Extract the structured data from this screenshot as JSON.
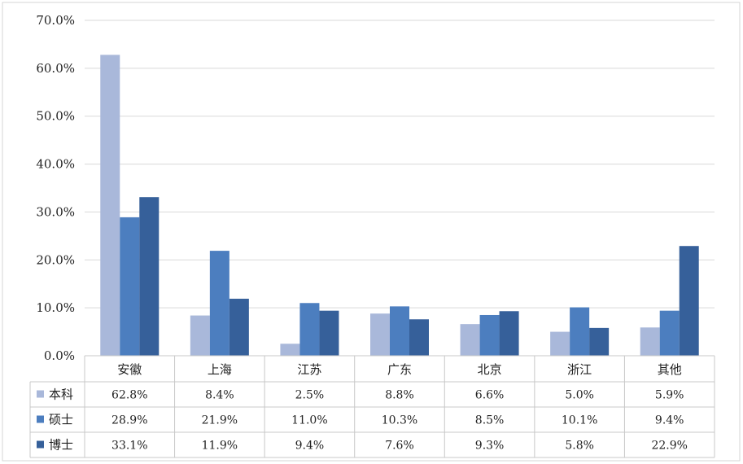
{
  "chart_data": {
    "type": "bar",
    "title": "",
    "xlabel": "",
    "ylabel": "",
    "ylim": [
      0,
      70
    ],
    "yticks": [
      "0.0%",
      "10.0%",
      "20.0%",
      "30.0%",
      "40.0%",
      "50.0%",
      "60.0%",
      "70.0%"
    ],
    "grid": true,
    "legend": "data-table",
    "categories": [
      "安徽",
      "上海",
      "江苏",
      "广东",
      "北京",
      "浙江",
      "其他"
    ],
    "series": [
      {
        "name": "本科",
        "color": "#a9b8da",
        "values": [
          62.8,
          8.4,
          2.5,
          8.8,
          6.6,
          5.0,
          5.9
        ],
        "labels": [
          "62.8%",
          "8.4%",
          "2.5%",
          "8.8%",
          "6.6%",
          "5.0%",
          "5.9%"
        ]
      },
      {
        "name": "硕士",
        "color": "#4c7ebf",
        "values": [
          28.9,
          21.9,
          11.0,
          10.3,
          8.5,
          10.1,
          9.4
        ],
        "labels": [
          "28.9%",
          "21.9%",
          "11.0%",
          "10.3%",
          "8.5%",
          "10.1%",
          "9.4%"
        ]
      },
      {
        "name": "博士",
        "color": "#36609a",
        "values": [
          33.1,
          11.9,
          9.4,
          7.6,
          9.3,
          5.8,
          22.9
        ],
        "labels": [
          "33.1%",
          "11.9%",
          "9.4%",
          "7.6%",
          "9.3%",
          "5.8%",
          "22.9%"
        ]
      }
    ]
  }
}
